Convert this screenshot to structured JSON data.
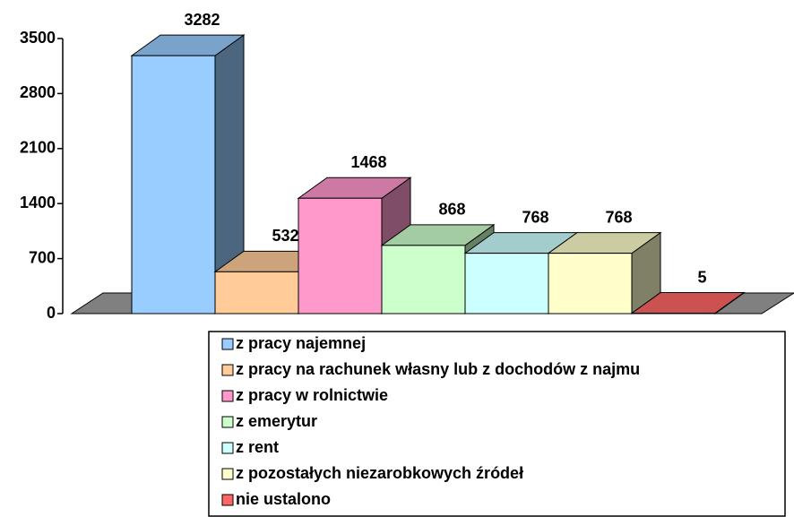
{
  "chart_data": {
    "type": "bar3d",
    "categories": [
      "z pracy najemnej",
      "z pracy na rachunek własny lub z dochodów z najmu",
      "z pracy w rolnictwie",
      "z emerytur",
      "z rent",
      "z pozostałych niezarobkowych źródeł",
      "nie ustalono"
    ],
    "values": [
      3282,
      532,
      1468,
      868,
      768,
      768,
      5
    ],
    "colors": [
      "#99ccff",
      "#ffcc99",
      "#ff99cc",
      "#ccffcc",
      "#ccffff",
      "#ffffcc",
      "#ff6666"
    ],
    "ylim": [
      0,
      3500
    ],
    "yticks": [
      0,
      700,
      1400,
      2100,
      2800,
      3500
    ]
  }
}
